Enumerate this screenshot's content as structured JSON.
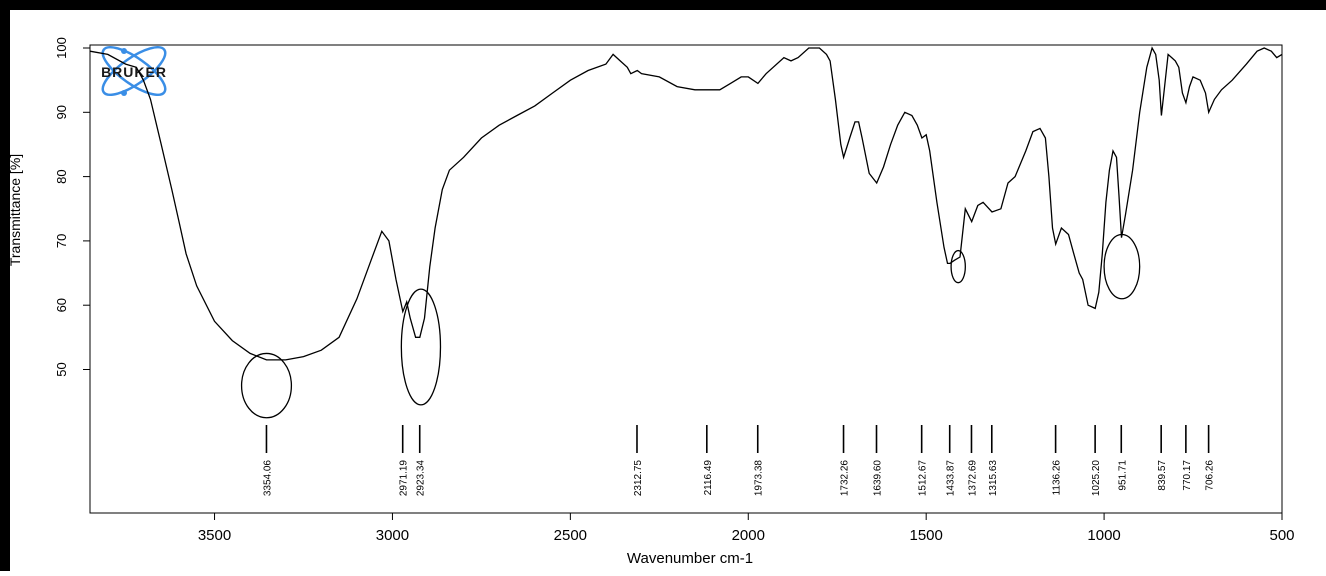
{
  "chart_data": {
    "type": "line",
    "xlabel": "Wavenumber cm-1",
    "ylabel": "Transmittance [%]",
    "xlim": [
      3850,
      500
    ],
    "x_reversed": true,
    "ylim": [
      45,
      100
    ],
    "x_ticks": [
      3500,
      3000,
      2500,
      2000,
      1500,
      1000,
      500
    ],
    "y_ticks": [
      50,
      60,
      70,
      80,
      90,
      100
    ],
    "logo_text": "BRUKER",
    "series": [
      {
        "points": [
          [
            3850,
            99.5
          ],
          [
            3800,
            99
          ],
          [
            3750,
            97.5
          ],
          [
            3720,
            97
          ],
          [
            3700,
            95
          ],
          [
            3680,
            92
          ],
          [
            3650,
            85
          ],
          [
            3620,
            78
          ],
          [
            3600,
            73
          ],
          [
            3580,
            68
          ],
          [
            3550,
            63
          ],
          [
            3500,
            57.5
          ],
          [
            3450,
            54.5
          ],
          [
            3400,
            52.5
          ],
          [
            3354,
            51.5
          ],
          [
            3300,
            51.5
          ],
          [
            3250,
            52
          ],
          [
            3200,
            53
          ],
          [
            3150,
            55
          ],
          [
            3100,
            61
          ],
          [
            3060,
            67
          ],
          [
            3030,
            71.5
          ],
          [
            3010,
            70
          ],
          [
            2990,
            64
          ],
          [
            2971,
            59
          ],
          [
            2960,
            60.5
          ],
          [
            2950,
            58
          ],
          [
            2935,
            55
          ],
          [
            2923,
            55
          ],
          [
            2910,
            58
          ],
          [
            2895,
            66
          ],
          [
            2880,
            72
          ],
          [
            2860,
            78
          ],
          [
            2840,
            81
          ],
          [
            2800,
            83
          ],
          [
            2750,
            86
          ],
          [
            2700,
            88
          ],
          [
            2650,
            89.5
          ],
          [
            2600,
            91
          ],
          [
            2550,
            93
          ],
          [
            2500,
            95
          ],
          [
            2450,
            96.5
          ],
          [
            2400,
            97.5
          ],
          [
            2380,
            99
          ],
          [
            2360,
            98
          ],
          [
            2340,
            97
          ],
          [
            2330,
            96
          ],
          [
            2312,
            96.5
          ],
          [
            2300,
            96
          ],
          [
            2250,
            95.5
          ],
          [
            2200,
            94
          ],
          [
            2150,
            93.5
          ],
          [
            2116,
            93.5
          ],
          [
            2080,
            93.5
          ],
          [
            2050,
            94.5
          ],
          [
            2020,
            95.5
          ],
          [
            2000,
            95.5
          ],
          [
            1973,
            94.5
          ],
          [
            1950,
            96
          ],
          [
            1900,
            98.5
          ],
          [
            1880,
            98
          ],
          [
            1860,
            98.5
          ],
          [
            1830,
            100
          ],
          [
            1800,
            100
          ],
          [
            1780,
            99
          ],
          [
            1770,
            98
          ],
          [
            1755,
            92
          ],
          [
            1740,
            85
          ],
          [
            1732,
            83
          ],
          [
            1715,
            86
          ],
          [
            1700,
            88.5
          ],
          [
            1690,
            88.5
          ],
          [
            1680,
            86
          ],
          [
            1660,
            80.5
          ],
          [
            1639,
            79
          ],
          [
            1620,
            81.5
          ],
          [
            1600,
            85
          ],
          [
            1580,
            88
          ],
          [
            1560,
            90
          ],
          [
            1540,
            89.5
          ],
          [
            1525,
            88
          ],
          [
            1512,
            86
          ],
          [
            1500,
            86.5
          ],
          [
            1490,
            84
          ],
          [
            1470,
            76
          ],
          [
            1450,
            69
          ],
          [
            1440,
            66.5
          ],
          [
            1433,
            66.5
          ],
          [
            1420,
            67
          ],
          [
            1405,
            67.5
          ],
          [
            1390,
            75
          ],
          [
            1372,
            73
          ],
          [
            1355,
            75.5
          ],
          [
            1340,
            76
          ],
          [
            1315,
            74.5
          ],
          [
            1290,
            75
          ],
          [
            1270,
            79
          ],
          [
            1250,
            80
          ],
          [
            1220,
            84
          ],
          [
            1200,
            87
          ],
          [
            1180,
            87.5
          ],
          [
            1165,
            86
          ],
          [
            1155,
            80
          ],
          [
            1145,
            72
          ],
          [
            1136,
            69.5
          ],
          [
            1120,
            72
          ],
          [
            1100,
            71
          ],
          [
            1085,
            68
          ],
          [
            1070,
            65
          ],
          [
            1060,
            64
          ],
          [
            1045,
            60
          ],
          [
            1025,
            59.5
          ],
          [
            1015,
            62
          ],
          [
            1005,
            68
          ],
          [
            995,
            76
          ],
          [
            985,
            81
          ],
          [
            975,
            84
          ],
          [
            965,
            83
          ],
          [
            958,
            77
          ],
          [
            951,
            70.5
          ],
          [
            940,
            74
          ],
          [
            920,
            81
          ],
          [
            900,
            90
          ],
          [
            880,
            97
          ],
          [
            865,
            100
          ],
          [
            855,
            99
          ],
          [
            845,
            95
          ],
          [
            839,
            89.5
          ],
          [
            830,
            94
          ],
          [
            820,
            99
          ],
          [
            810,
            98.5
          ],
          [
            800,
            98
          ],
          [
            790,
            97
          ],
          [
            780,
            93
          ],
          [
            770,
            91.5
          ],
          [
            760,
            94
          ],
          [
            750,
            95.5
          ],
          [
            730,
            95
          ],
          [
            715,
            93
          ],
          [
            706,
            90
          ],
          [
            690,
            92
          ],
          [
            670,
            93.5
          ],
          [
            640,
            95
          ],
          [
            600,
            97.5
          ],
          [
            570,
            99.5
          ],
          [
            550,
            100
          ],
          [
            530,
            99.5
          ],
          [
            515,
            98.5
          ],
          [
            500,
            99
          ]
        ]
      }
    ],
    "peak_labels": [
      "3354.06",
      "2971.19",
      "2923.34",
      "2312.75",
      "2116.49",
      "1973.38",
      "1732.26",
      "1639.60",
      "1512.67",
      "1433.87",
      "1372.69",
      "1315.63",
      "1136.26",
      "1025.20",
      "951.71",
      "839.57",
      "770.17",
      "706.26"
    ],
    "peak_positions": [
      3354.06,
      2971.19,
      2923.34,
      2312.75,
      2116.49,
      1973.38,
      1732.26,
      1639.6,
      1512.67,
      1433.87,
      1372.69,
      1315.63,
      1136.26,
      1025.2,
      951.71,
      839.57,
      770.17,
      706.26
    ],
    "highlighted_regions": [
      {
        "center": [
          3354,
          47.5
        ],
        "rx": 70,
        "ry": 5
      },
      {
        "center": [
          2920,
          53.5
        ],
        "rx": 55,
        "ry": 9
      },
      {
        "center": [
          1410,
          66
        ],
        "rx": 20,
        "ry": 2.5
      },
      {
        "center": [
          950,
          66
        ],
        "rx": 50,
        "ry": 5
      }
    ]
  },
  "colors": {
    "line": "#000000",
    "logo_orbit": "#3a8ee6",
    "logo_text": "#1a1a1a"
  }
}
